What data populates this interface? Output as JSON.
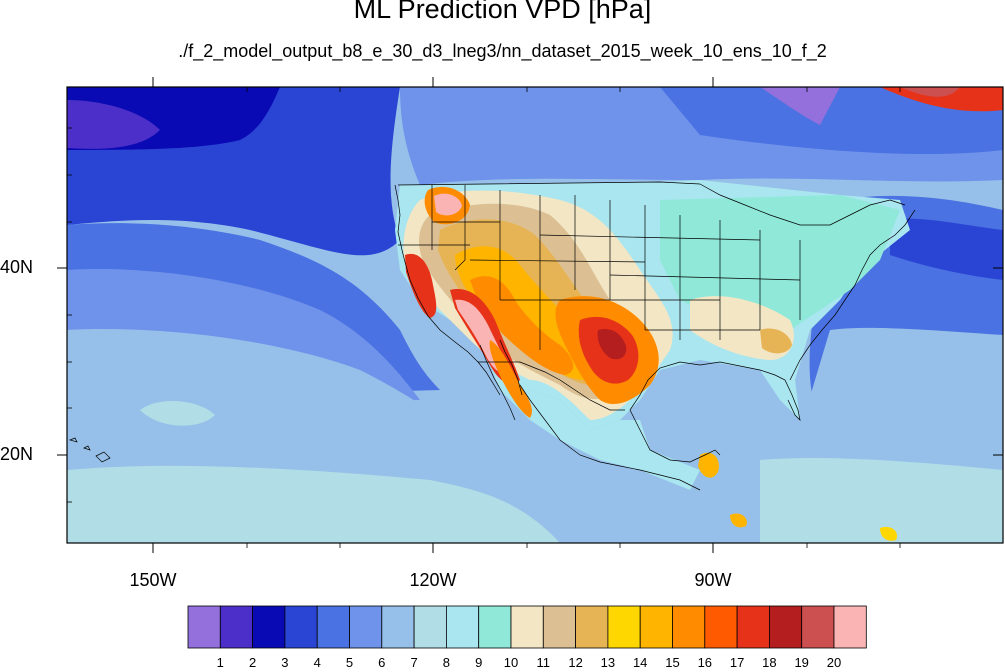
{
  "title": "ML Prediction VPD [hPa]",
  "subtitle": "./f_2_model_output_b8_e_30_d3_lneg3/nn_dataset_2015_week_10_ens_10_f_2",
  "lon_labels": [
    "150W",
    "120W",
    "90W"
  ],
  "lat_labels": [
    "40N",
    "20N"
  ],
  "colorbar": {
    "labels": [
      "1",
      "2",
      "3",
      "4",
      "5",
      "6",
      "7",
      "8",
      "9",
      "10",
      "11",
      "12",
      "13",
      "14",
      "15",
      "16",
      "17",
      "18",
      "19",
      "20"
    ],
    "colors": [
      "#9370db",
      "#4b2fc8",
      "#0a0ab4",
      "#2a45d4",
      "#4a72e2",
      "#6f92ea",
      "#96c0e9",
      "#b0dde6",
      "#a9e6f0",
      "#8fe8d8",
      "#f2e6c5",
      "#dcc094",
      "#e6b455",
      "#ffd700",
      "#ffb400",
      "#ff8c00",
      "#ff5a00",
      "#e63218",
      "#b41e1e",
      "#cd5050",
      "#fab4b4"
    ]
  }
}
